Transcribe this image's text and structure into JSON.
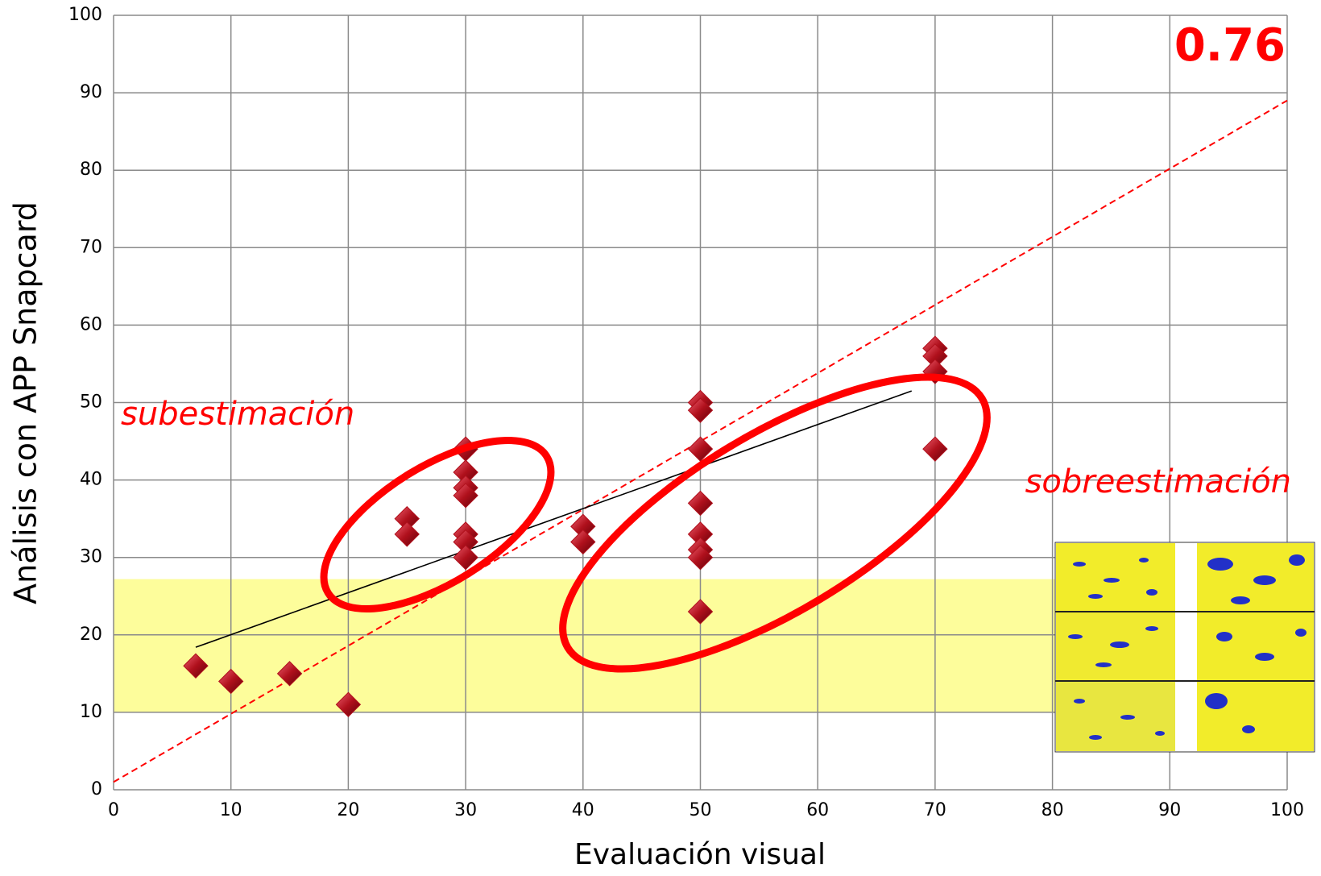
{
  "chart_data": {
    "type": "scatter",
    "x_label": "Evaluación visual",
    "y_label": "Análisis con APP Snapcard",
    "x": [
      7,
      10,
      15,
      20,
      25,
      25,
      30,
      30,
      30,
      30,
      30,
      30,
      30,
      40,
      40,
      50,
      50,
      50,
      50,
      50,
      50,
      50,
      50,
      70,
      70,
      70,
      70
    ],
    "values": [
      16,
      14,
      15,
      11,
      35,
      33,
      44,
      41,
      39,
      38,
      33,
      32,
      30,
      34,
      32,
      50,
      49,
      44,
      37,
      33,
      31,
      30,
      23,
      57,
      56,
      54,
      44
    ],
    "color": "#b0101c",
    "xlim": [
      0,
      100
    ],
    "ylim": [
      0,
      100
    ],
    "xticks": [
      0,
      10,
      20,
      30,
      40,
      50,
      60,
      70,
      80,
      90,
      100
    ],
    "yticks": [
      0,
      10,
      20,
      30,
      40,
      50,
      60,
      70,
      80,
      90,
      100
    ],
    "grid": true,
    "shaded_band": {
      "y": [
        10,
        27.2
      ],
      "color": "#fdfd9b"
    },
    "trendline": {
      "x": [
        7,
        68
      ],
      "y": [
        18.4,
        51.5
      ],
      "color": "#000000"
    },
    "reference_line": {
      "x": [
        0,
        100
      ],
      "y": [
        1,
        89
      ],
      "color": "#ff0000"
    },
    "annotations": [
      "0.76",
      "subestimación",
      "sobreestimación"
    ]
  }
}
